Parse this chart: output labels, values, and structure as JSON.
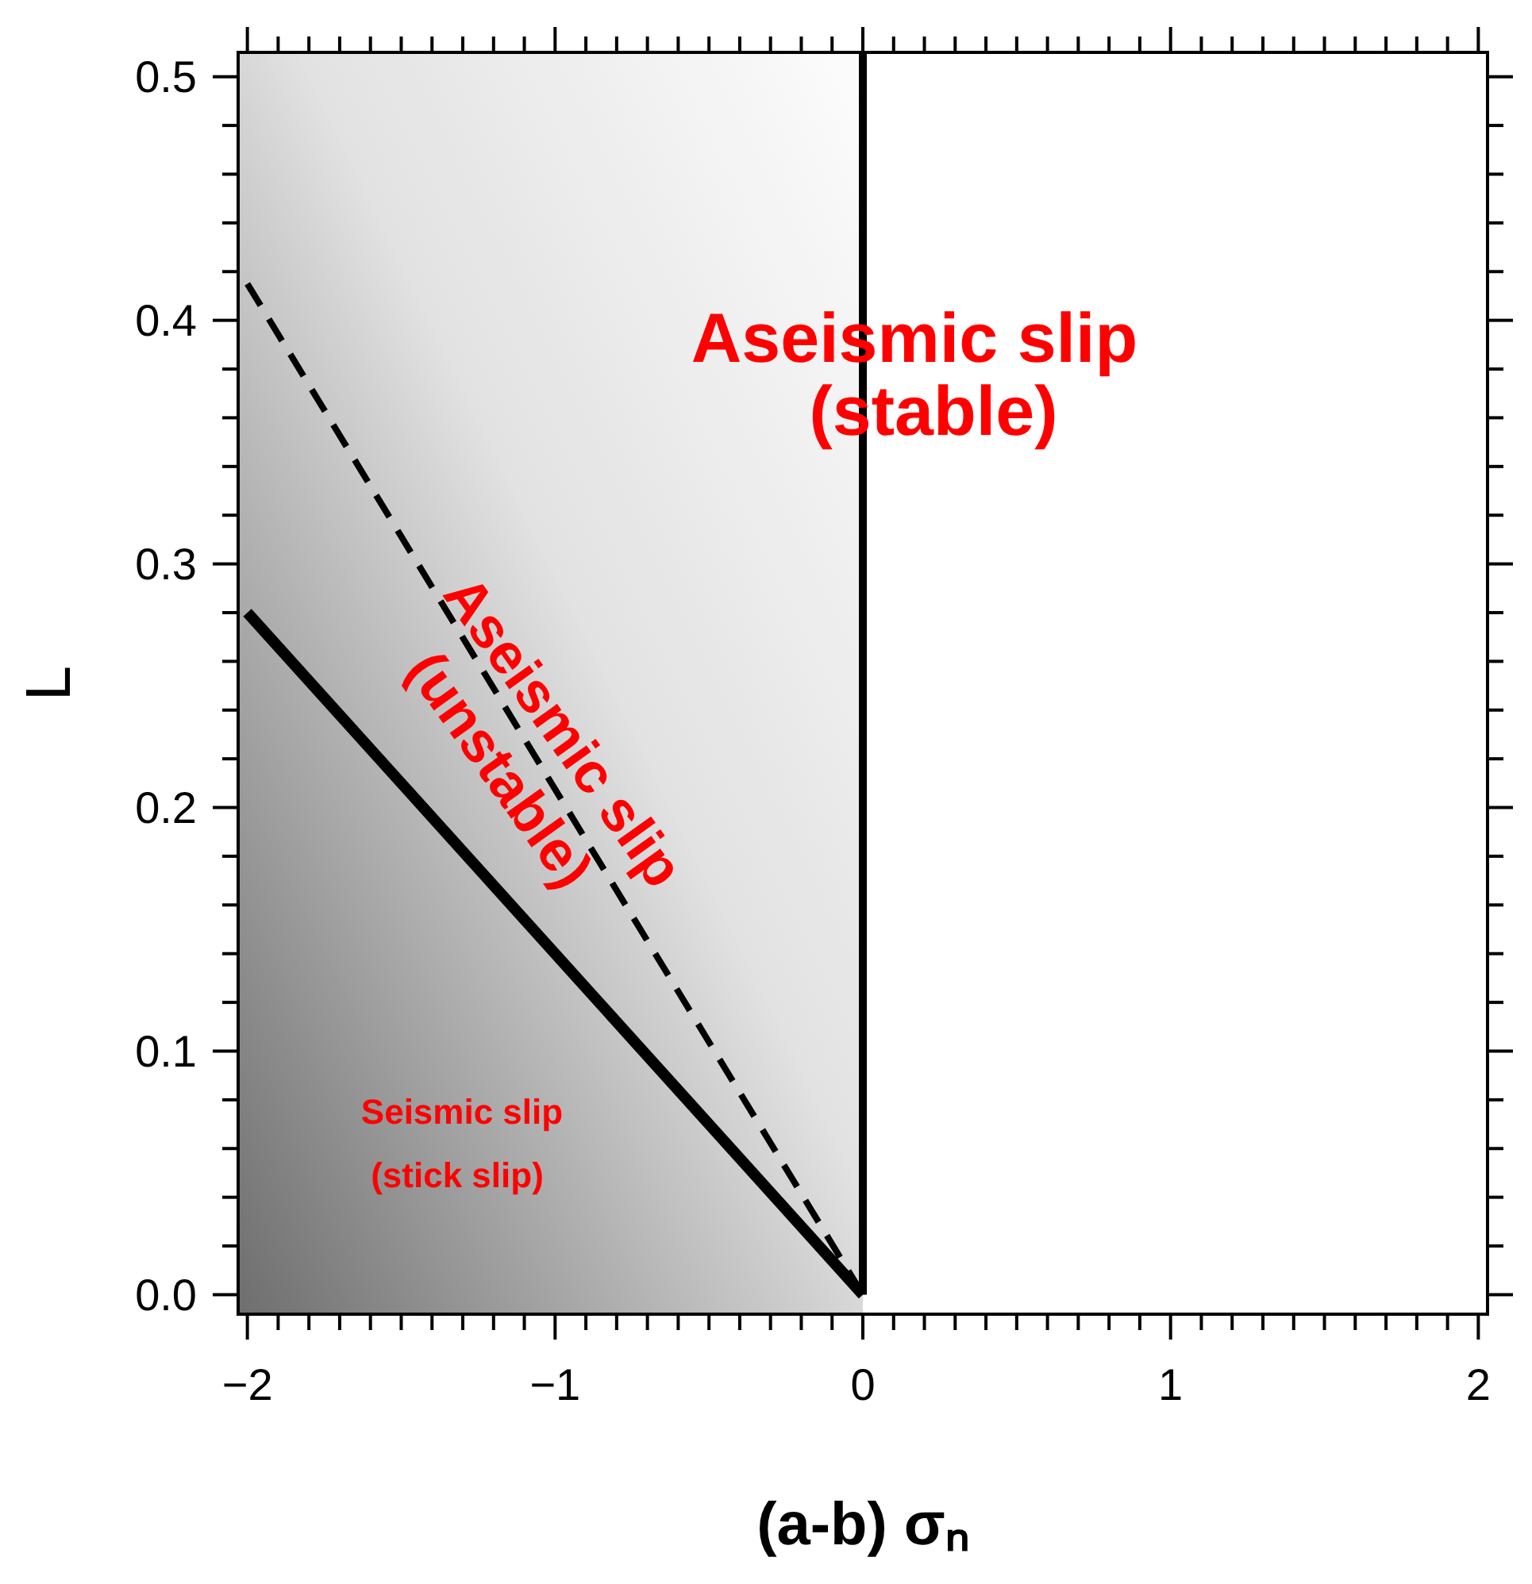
{
  "chart_data": {
    "type": "line",
    "xlabel": "(a-b) σₙ",
    "ylabel": "L",
    "xlim": [
      -2.03,
      2.03
    ],
    "ylim": [
      -0.008,
      0.51
    ],
    "xticks": [
      -2,
      -1,
      0,
      1,
      2,
      {
        "value": -1.9,
        "label": null
      },
      {
        "value": -1.8,
        "label": null
      },
      {
        "value": -1.7,
        "label": null
      },
      {
        "value": -1.6,
        "label": null
      },
      {
        "value": -1.5,
        "label": null
      },
      {
        "value": -1.4,
        "label": null
      },
      {
        "value": -1.3,
        "label": null
      },
      {
        "value": -1.2,
        "label": null
      },
      {
        "value": -1.1,
        "label": null
      },
      {
        "value": -0.9,
        "label": null
      },
      {
        "value": -0.8,
        "label": null
      },
      {
        "value": -0.7,
        "label": null
      },
      {
        "value": -0.6,
        "label": null
      },
      {
        "value": -0.5,
        "label": null
      },
      {
        "value": -0.4,
        "label": null
      },
      {
        "value": -0.3,
        "label": null
      },
      {
        "value": -0.2,
        "label": null
      },
      {
        "value": -0.1,
        "label": null
      },
      {
        "value": 0.1,
        "label": null
      },
      {
        "value": 0.2,
        "label": null
      },
      {
        "value": 0.3,
        "label": null
      },
      {
        "value": 0.4,
        "label": null
      },
      {
        "value": 0.5,
        "label": null
      },
      {
        "value": 0.6,
        "label": null
      },
      {
        "value": 0.7,
        "label": null
      },
      {
        "value": 0.8,
        "label": null
      },
      {
        "value": 0.9,
        "label": null
      },
      {
        "value": 1.1,
        "label": null
      },
      {
        "value": 1.2,
        "label": null
      },
      {
        "value": 1.3,
        "label": null
      },
      {
        "value": 1.4,
        "label": null
      },
      {
        "value": 1.5,
        "label": null
      },
      {
        "value": 1.6,
        "label": null
      },
      {
        "value": 1.7,
        "label": null
      },
      {
        "value": 1.8,
        "label": null
      },
      {
        "value": 1.9,
        "label": null
      }
    ],
    "yticks": [
      {
        "value": 0,
        "label": "0.0"
      },
      0.1,
      0.2,
      0.3,
      0.4,
      0.5,
      {
        "value": 0.02,
        "label": null
      },
      {
        "value": 0.04,
        "label": null
      },
      {
        "value": 0.06,
        "label": null
      },
      {
        "value": 0.08,
        "label": null
      },
      {
        "value": 0.12,
        "label": null
      },
      {
        "value": 0.14,
        "label": null
      },
      {
        "value": 0.16,
        "label": null
      },
      {
        "value": 0.18,
        "label": null
      },
      {
        "value": 0.22,
        "label": null
      },
      {
        "value": 0.24,
        "label": null
      },
      {
        "value": 0.26,
        "label": null
      },
      {
        "value": 0.28,
        "label": null
      },
      {
        "value": 0.32,
        "label": null
      },
      {
        "value": 0.34,
        "label": null
      },
      {
        "value": 0.36,
        "label": null
      },
      {
        "value": 0.38,
        "label": null
      },
      {
        "value": 0.42,
        "label": null
      },
      {
        "value": 0.44,
        "label": null
      },
      {
        "value": 0.46,
        "label": null
      },
      {
        "value": 0.48,
        "label": null
      }
    ],
    "x": [
      -2,
      0
    ],
    "series": [
      {
        "values": [
          0.28,
          0
        ],
        "color": "#000000",
        "line_style": "solid"
      },
      {
        "values": [
          0.415,
          0
        ],
        "color": "#000000",
        "line_style": "dashed"
      }
    ],
    "ref_lines": [
      {
        "axis": "x",
        "value": 0,
        "color": "#000000"
      }
    ],
    "bands": [
      {
        "axis": "x",
        "from": -2.03,
        "to": 0,
        "color": "#6e6e6e"
      }
    ],
    "annotations": [
      "Aseismic slip",
      "(stable)",
      "Aseismic slip",
      "(unstable)",
      "Seismic slip",
      "(stick slip)"
    ],
    "grid": false
  }
}
